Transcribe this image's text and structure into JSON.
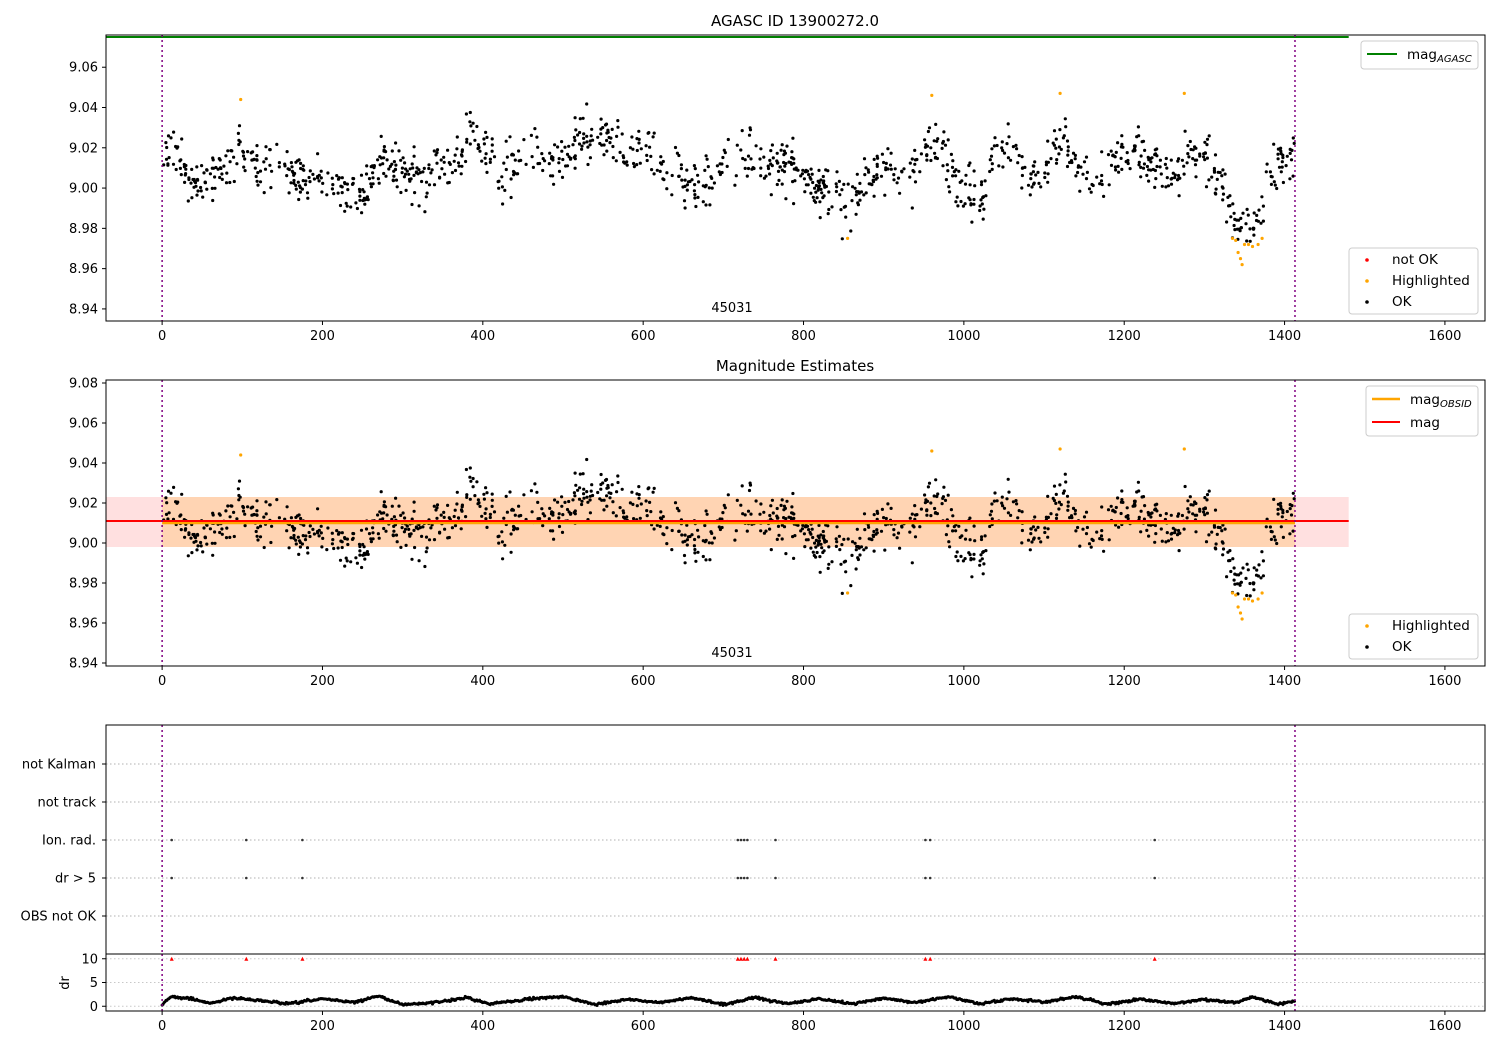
{
  "chart_data": [
    {
      "type": "scatter",
      "title": "AGASC ID 13900272.0",
      "xlim": [
        -70,
        1650
      ],
      "ylim": [
        8.934,
        9.076
      ],
      "xticks": [
        "0",
        "200",
        "400",
        "600",
        "800",
        "1000",
        "1200",
        "1400",
        "1600"
      ],
      "yticks": [
        "8.94",
        "8.96",
        "8.98",
        "9.00",
        "9.02",
        "9.04",
        "9.06"
      ],
      "obsid_label": "45031",
      "obs_bounds": [
        0,
        1413
      ],
      "mag_agasc": 9.075,
      "mag_agasc_xrange": [
        -70,
        1480
      ],
      "legend_top": {
        "label": "mag",
        "sub": "AGASC",
        "color": "#008000"
      },
      "legend_bottom": [
        {
          "label": "not OK",
          "color": "#ff0000"
        },
        {
          "label": "Highlighted",
          "color": "#ffa500"
        },
        {
          "label": "OK",
          "color": "#000000"
        }
      ],
      "highlighted_points": [
        [
          98,
          9.044
        ],
        [
          855,
          8.975
        ],
        [
          960,
          9.046
        ],
        [
          1120,
          9.047
        ],
        [
          1275,
          9.047
        ],
        [
          1335,
          8.975
        ],
        [
          1339,
          8.974
        ],
        [
          1342,
          8.968
        ],
        [
          1345,
          8.965
        ],
        [
          1347,
          8.962
        ],
        [
          1350,
          8.972
        ],
        [
          1355,
          8.972
        ],
        [
          1360,
          8.971
        ],
        [
          1367,
          8.972
        ],
        [
          1372,
          8.975
        ]
      ],
      "ok_trend": [
        [
          0,
          9.018
        ],
        [
          20,
          9.012
        ],
        [
          40,
          9.002
        ],
        [
          60,
          9.008
        ],
        [
          80,
          9.004
        ],
        [
          95,
          9.022
        ],
        [
          110,
          9.01
        ],
        [
          130,
          9.012
        ],
        [
          150,
          9.01
        ],
        [
          170,
          9.002
        ],
        [
          190,
          9.006
        ],
        [
          210,
          9.004
        ],
        [
          230,
          8.995
        ],
        [
          250,
          8.996
        ],
        [
          270,
          9.015
        ],
        [
          290,
          9.012
        ],
        [
          310,
          9.006
        ],
        [
          330,
          9.007
        ],
        [
          350,
          9.011
        ],
        [
          365,
          9.013
        ],
        [
          385,
          9.03
        ],
        [
          400,
          9.02
        ],
        [
          420,
          9.008
        ],
        [
          440,
          9.01
        ],
        [
          460,
          9.02
        ],
        [
          480,
          9.015
        ],
        [
          500,
          9.012
        ],
        [
          520,
          9.026
        ],
        [
          540,
          9.024
        ],
        [
          560,
          9.024
        ],
        [
          580,
          9.018
        ],
        [
          600,
          9.02
        ],
        [
          620,
          9.015
        ],
        [
          640,
          9.008
        ],
        [
          660,
          9.0
        ],
        [
          680,
          9.0
        ],
        [
          700,
          9.012
        ],
        [
          720,
          9.018
        ],
        [
          740,
          9.015
        ],
        [
          760,
          9.007
        ],
        [
          780,
          9.012
        ],
        [
          800,
          9.007
        ],
        [
          820,
          8.998
        ],
        [
          840,
          8.998
        ],
        [
          860,
          8.992
        ],
        [
          880,
          9.005
        ],
        [
          900,
          9.015
        ],
        [
          920,
          9.0
        ],
        [
          940,
          9.01
        ],
        [
          960,
          9.025
        ],
        [
          980,
          9.01
        ],
        [
          1000,
          9.0
        ],
        [
          1020,
          8.995
        ],
        [
          1040,
          9.013
        ],
        [
          1060,
          9.02
        ],
        [
          1080,
          9.006
        ],
        [
          1100,
          9.005
        ],
        [
          1120,
          9.024
        ],
        [
          1140,
          9.012
        ],
        [
          1160,
          9.005
        ],
        [
          1180,
          9.008
        ],
        [
          1200,
          9.018
        ],
        [
          1220,
          9.018
        ],
        [
          1240,
          9.015
        ],
        [
          1260,
          9.005
        ],
        [
          1280,
          9.012
        ],
        [
          1300,
          9.018
        ],
        [
          1320,
          9.005
        ],
        [
          1335,
          8.985
        ],
        [
          1350,
          8.982
        ],
        [
          1365,
          8.98
        ],
        [
          1380,
          9.005
        ],
        [
          1395,
          9.012
        ],
        [
          1413,
          9.02
        ]
      ],
      "ok_scatter": 0.01,
      "ok_count": 1200
    },
    {
      "type": "scatter",
      "title": "Magnitude Estimates",
      "xlim": [
        -70,
        1650
      ],
      "ylim": [
        8.9385,
        9.0815
      ],
      "xticks": [
        "0",
        "200",
        "400",
        "600",
        "800",
        "1000",
        "1200",
        "1400",
        "1600"
      ],
      "yticks": [
        "8.94",
        "8.96",
        "8.98",
        "9.00",
        "9.02",
        "9.04",
        "9.06",
        "9.08"
      ],
      "obsid_label": "45031",
      "obs_bounds": [
        0,
        1413
      ],
      "mag": 9.011,
      "mag_band": [
        8.998,
        9.023
      ],
      "mag_xrange": [
        -70,
        1480
      ],
      "mag_obsid": 9.01,
      "mag_obsid_band": [
        8.998,
        9.023
      ],
      "mag_obsid_xrange": [
        0,
        1413
      ],
      "legend_top": [
        {
          "label": "mag",
          "sub": "OBSID",
          "color": "#ffa500"
        },
        {
          "label": "mag",
          "sub": "",
          "color": "#ff0000"
        }
      ],
      "legend_bottom": [
        {
          "label": "Highlighted",
          "color": "#ffa500"
        },
        {
          "label": "OK",
          "color": "#000000"
        }
      ]
    },
    {
      "type": "scatter",
      "title": "",
      "xlim": [
        -70,
        1650
      ],
      "categories": [
        "not Kalman",
        "not track",
        "Ion. rad.",
        "dr > 5",
        "OBS not OK"
      ],
      "obs_bounds": [
        0,
        1413
      ],
      "flag_times": [
        12,
        105,
        175,
        718,
        722,
        726,
        730,
        765,
        952,
        958,
        1238
      ],
      "flags": {
        "not Kalman": [],
        "not track": [],
        "Ion. rad.": "flag_times",
        "dr > 5": "flag_times",
        "OBS not OK": []
      },
      "dr_ylabel": "dr",
      "dr_yticks": [
        "0",
        "5",
        "10"
      ],
      "dr_ylim": [
        -1,
        11
      ],
      "dr_threshold": 10,
      "xticks": [
        "0",
        "200",
        "400",
        "600",
        "800",
        "1000",
        "1200",
        "1400",
        "1600"
      ],
      "dr_trend": [
        [
          0,
          0.3
        ],
        [
          10,
          2.0
        ],
        [
          35,
          1.6
        ],
        [
          60,
          0.6
        ],
        [
          90,
          1.8
        ],
        [
          120,
          1.2
        ],
        [
          160,
          0.5
        ],
        [
          200,
          1.6
        ],
        [
          240,
          0.8
        ],
        [
          270,
          2.2
        ],
        [
          300,
          0.3
        ],
        [
          340,
          0.8
        ],
        [
          380,
          1.8
        ],
        [
          410,
          0.5
        ],
        [
          460,
          1.6
        ],
        [
          500,
          2.0
        ],
        [
          540,
          0.4
        ],
        [
          580,
          1.5
        ],
        [
          620,
          0.7
        ],
        [
          660,
          1.8
        ],
        [
          700,
          0.4
        ],
        [
          740,
          1.8
        ],
        [
          780,
          0.5
        ],
        [
          820,
          1.6
        ],
        [
          860,
          0.5
        ],
        [
          900,
          1.7
        ],
        [
          940,
          0.8
        ],
        [
          980,
          2.0
        ],
        [
          1020,
          0.5
        ],
        [
          1060,
          1.6
        ],
        [
          1100,
          0.8
        ],
        [
          1140,
          2.0
        ],
        [
          1180,
          0.4
        ],
        [
          1220,
          1.5
        ],
        [
          1260,
          0.6
        ],
        [
          1300,
          1.4
        ],
        [
          1340,
          0.8
        ],
        [
          1360,
          2.0
        ],
        [
          1390,
          0.5
        ],
        [
          1413,
          1.0
        ]
      ]
    }
  ]
}
